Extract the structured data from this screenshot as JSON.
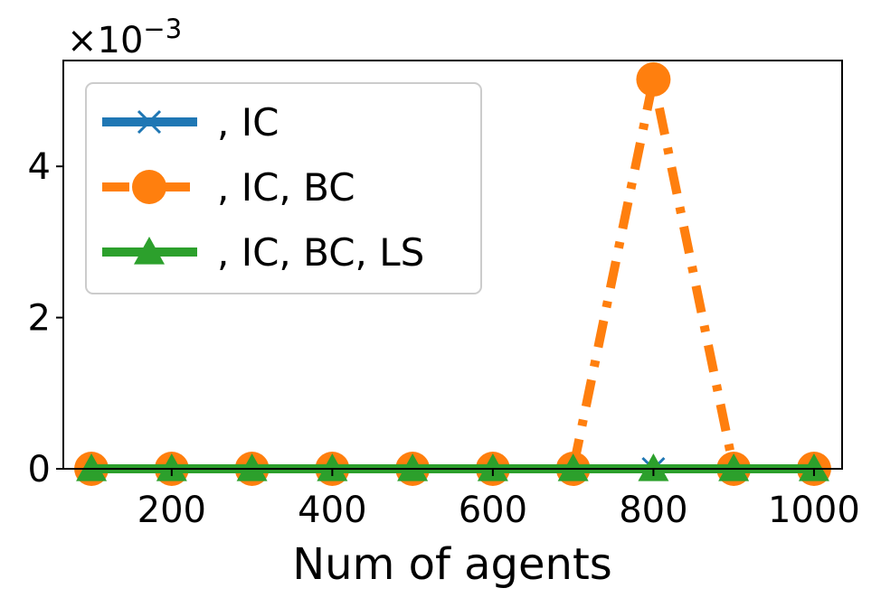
{
  "chart_data": {
    "type": "line",
    "title": "",
    "xlabel": "Num of agents",
    "ylabel": "",
    "y_scale_label": "×10",
    "y_scale_exponent": "−3",
    "xlim": [
      65,
      1035
    ],
    "ylim": [
      0,
      0.0054
    ],
    "x": [
      100,
      200,
      300,
      400,
      500,
      600,
      700,
      800,
      900,
      1000
    ],
    "x_ticks": [
      200,
      400,
      600,
      800,
      1000
    ],
    "x_tick_labels": [
      "200",
      "400",
      "600",
      "800",
      "1000"
    ],
    "y_ticks": [
      0,
      0.002,
      0.004
    ],
    "y_tick_labels": [
      "0",
      "2",
      "4"
    ],
    "grid": false,
    "legend_position": "upper-left",
    "series": [
      {
        "name": ", IC",
        "color": "#1f77b4",
        "marker": "x",
        "linestyle": "solid",
        "values": [
          0,
          0,
          0,
          0,
          0,
          0,
          0,
          0,
          0,
          0
        ]
      },
      {
        "name": ", IC, BC",
        "color": "#ff7f0e",
        "marker": "circle",
        "linestyle": "dashdot",
        "values": [
          0,
          0,
          0,
          0,
          0,
          0,
          0,
          0.00515,
          0,
          0
        ]
      },
      {
        "name": ", IC, BC, LS",
        "color": "#2ca02c",
        "marker": "triangle",
        "linestyle": "solid",
        "values": [
          0,
          0,
          0,
          0,
          0,
          0,
          0,
          0,
          0,
          0
        ]
      }
    ]
  }
}
